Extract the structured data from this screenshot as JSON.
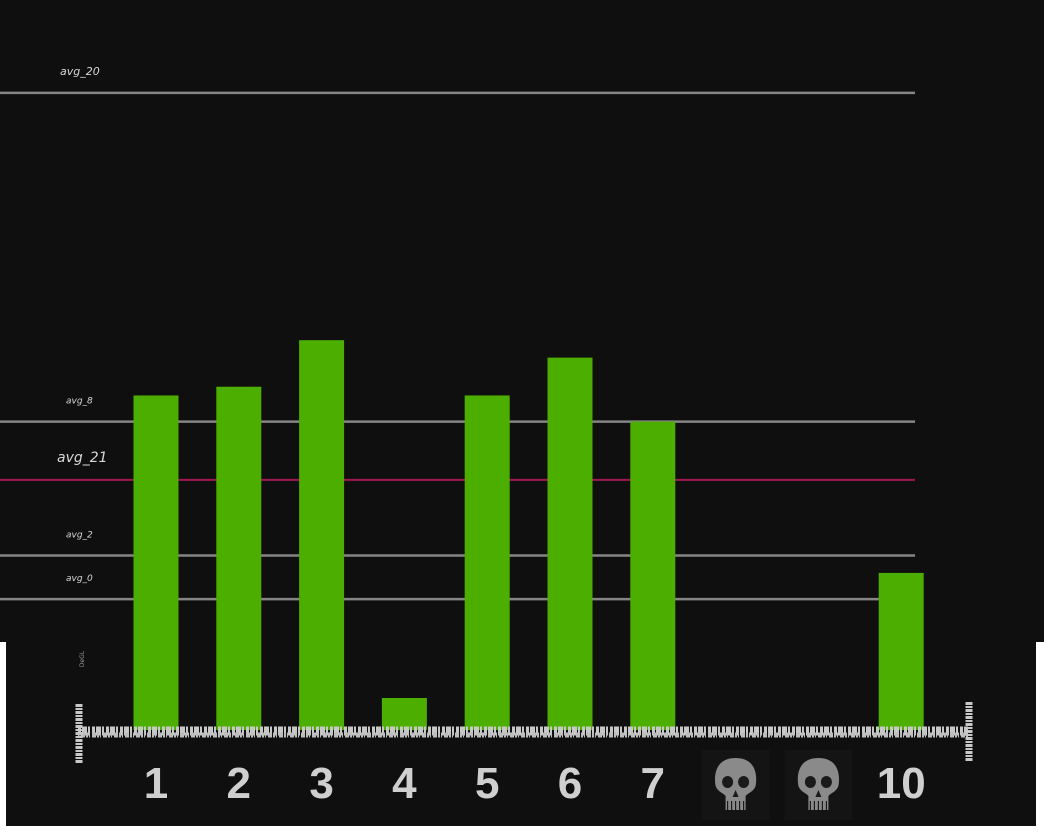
{
  "colors": {
    "background": "#0f0f10",
    "bar": "#4caf00",
    "reference_line": "#9a9a9a",
    "highlight_line": "#b0185c",
    "axis": "#c8c8c8",
    "tick_text": "#cfcfcf",
    "skull": "#8a8a8a"
  },
  "chart_data": {
    "type": "bar",
    "categories": [
      "1",
      "2",
      "3",
      "4",
      "5",
      "6",
      "7",
      "8",
      "9",
      "10"
    ],
    "category_labels": [
      "1",
      "2",
      "3",
      "4",
      "5",
      "6",
      "7",
      "skull-icon",
      "skull-icon",
      "10"
    ],
    "values": [
      11.5,
      11.8,
      13.4,
      1.1,
      11.5,
      12.8,
      10.6,
      null,
      null,
      5.4
    ],
    "ylim": [
      0,
      22
    ],
    "ylabel": "DeGL",
    "reference_lines": [
      {
        "name": "avg_20",
        "value": 21.9,
        "highlight": false
      },
      {
        "name": "avg_8",
        "value": 10.6,
        "highlight": false
      },
      {
        "name": "avg_21",
        "value": 8.6,
        "highlight": true
      },
      {
        "name": "avg_2",
        "value": 6.0,
        "highlight": false
      },
      {
        "name": "avg_0",
        "value": 4.5,
        "highlight": false
      }
    ],
    "grid": false,
    "legend": "none"
  }
}
